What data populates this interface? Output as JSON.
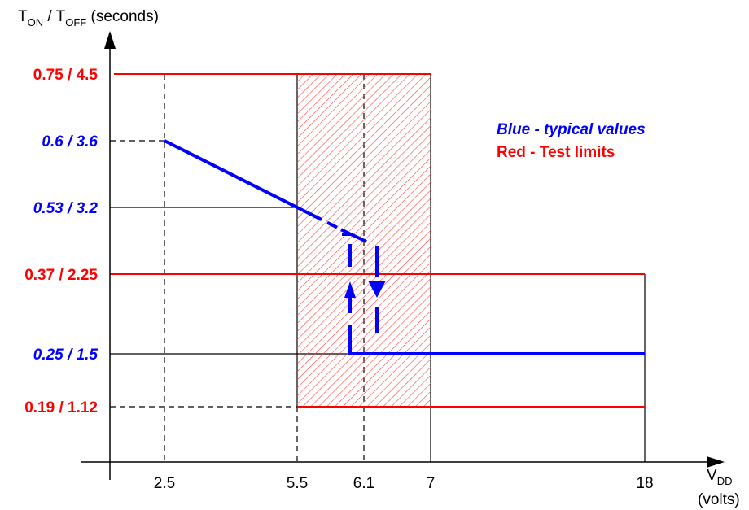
{
  "colors": {
    "typical": "#0000ff",
    "limit": "#ff0000",
    "axis": "#000000",
    "hatch": "#ff3333"
  },
  "chart_data": {
    "type": "line",
    "title": "",
    "ylabel": {
      "t1": "T",
      "s1": "ON",
      "sep": " / T",
      "s2": "OFF",
      "tail": " (seconds)"
    },
    "xlabel": {
      "main": "V",
      "sub": "DD",
      "unit": "(volts)"
    },
    "y_levels": [
      {
        "label": "0.75 / 4.5",
        "kind": "limit",
        "rank": 5
      },
      {
        "label": "0.6 / 3.6",
        "kind": "typical",
        "rank": 4
      },
      {
        "label": "0.53 / 3.2",
        "kind": "typical",
        "rank": 3
      },
      {
        "label": "0.37 / 2.25",
        "kind": "limit",
        "rank": 2
      },
      {
        "label": "0.25 / 1.5",
        "kind": "typical",
        "rank": 1
      },
      {
        "label": "0.19 / 1.12",
        "kind": "limit",
        "rank": 0
      }
    ],
    "x_ticks": [
      {
        "label": "2.5",
        "value": 2.5
      },
      {
        "label": "5.5",
        "value": 5.5
      },
      {
        "label": "6.1",
        "value": 6.1
      },
      {
        "label": "7",
        "value": 7
      },
      {
        "label": "18",
        "value": 18
      }
    ],
    "legend": [
      {
        "text": "Blue - typical values",
        "kind": "typical"
      },
      {
        "text": "Red - Test limits",
        "kind": "limit"
      }
    ],
    "test_limit_region": {
      "x_from": 5.5,
      "x_to": 7,
      "y_from": "0.19 / 1.12",
      "y_to": "0.75 / 4.5"
    },
    "typical_curve": [
      {
        "x": 2.5,
        "y": "0.6 / 3.6"
      },
      {
        "x": 5.5,
        "y": "0.53 / 3.2"
      }
    ]
  }
}
